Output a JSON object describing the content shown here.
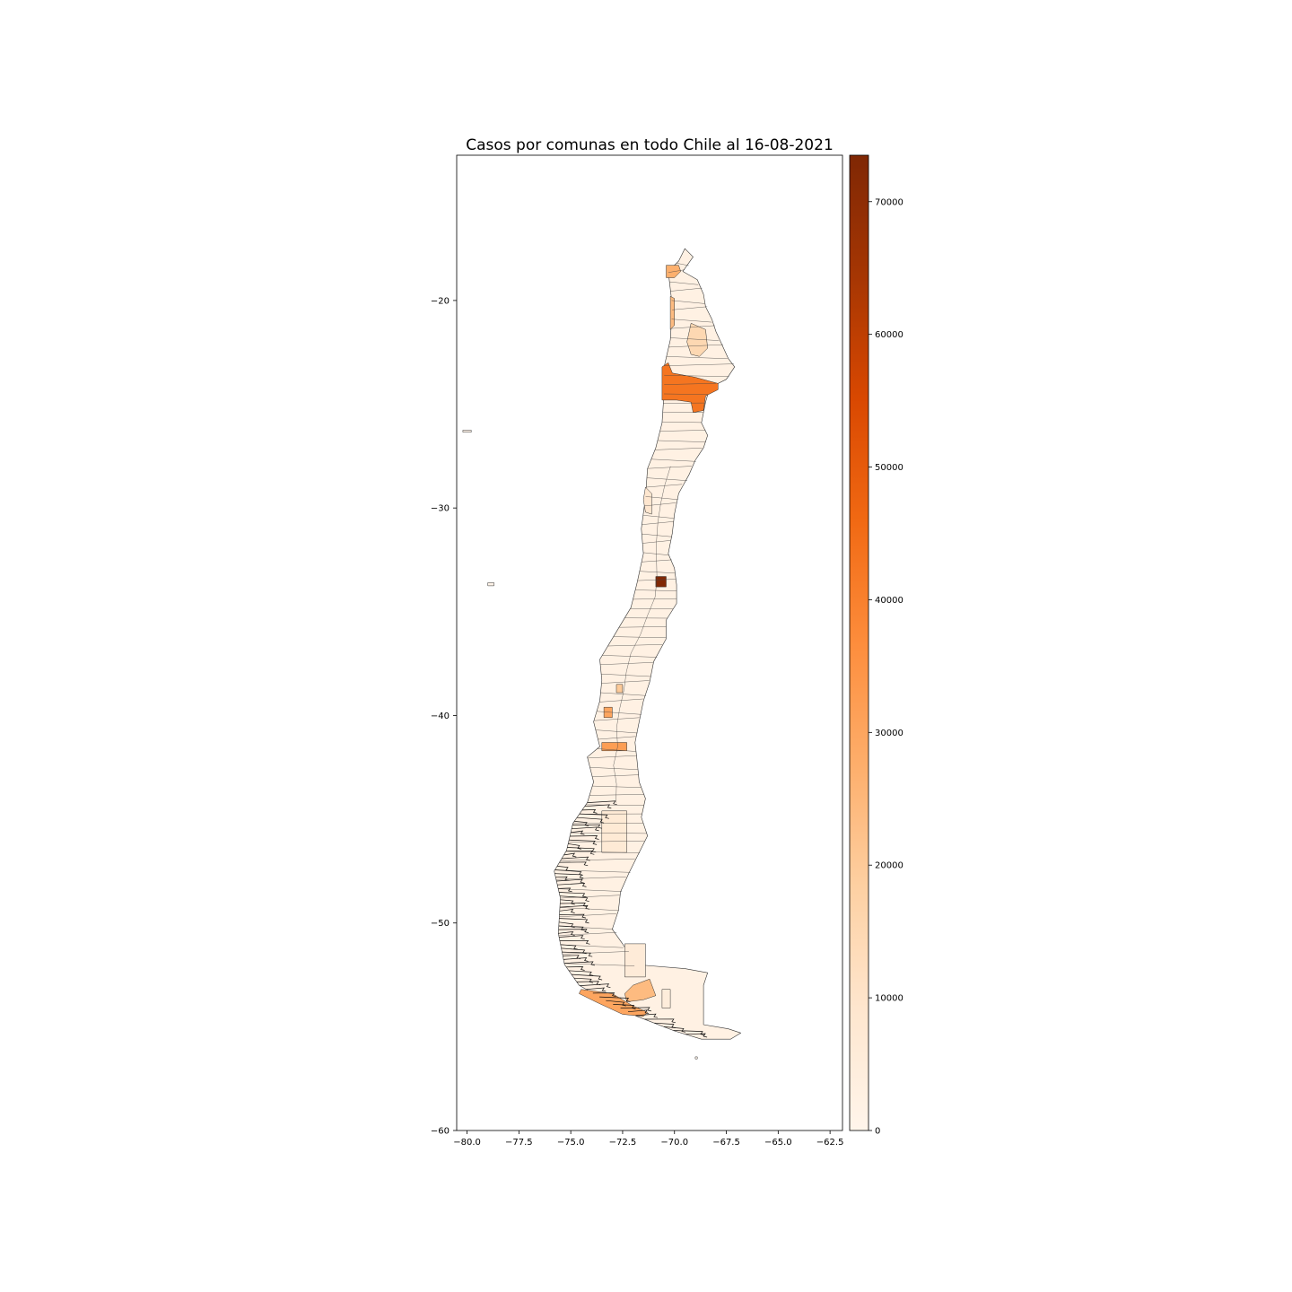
{
  "chart_data": {
    "type": "choropleth",
    "title": "Casos por comunas en todo Chile al 16-08-2021",
    "xlabel": "",
    "ylabel": "",
    "xlim": [
      -80.5,
      -61.9
    ],
    "ylim": [
      -60.0,
      -13.0
    ],
    "x_ticks": [
      -80.0,
      -77.5,
      -75.0,
      -72.5,
      -70.0,
      -67.5,
      -65.0,
      -62.5
    ],
    "x_tick_labels": [
      "−80.0",
      "−77.5",
      "−75.0",
      "−72.5",
      "−70.0",
      "−67.5",
      "−65.0",
      "−62.5"
    ],
    "y_ticks": [
      -20,
      -30,
      -40,
      -50,
      -60
    ],
    "y_tick_labels": [
      "−20",
      "−30",
      "−40",
      "−50",
      "−60"
    ],
    "grid": false,
    "colorbar": {
      "colormap": "Oranges",
      "range": [
        0,
        73500
      ],
      "ticks": [
        0,
        10000,
        20000,
        30000,
        40000,
        50000,
        60000,
        70000
      ],
      "tick_labels": [
        "0",
        "10000",
        "20000",
        "30000",
        "40000",
        "50000",
        "60000",
        "70000"
      ],
      "stops": [
        "#fff5eb",
        "#fee6ce",
        "#fdd0a2",
        "#fdae6b",
        "#fd8d3c",
        "#f16913",
        "#d94801",
        "#a63603",
        "#7f2704"
      ]
    },
    "regions": [
      {
        "outline": [
          [
            -69.5,
            -17.5
          ],
          [
            -69.1,
            -17.9
          ],
          [
            -69.6,
            -18.6
          ],
          [
            -68.9,
            -19.0
          ],
          [
            -68.6,
            -19.7
          ],
          [
            -68.5,
            -20.3
          ],
          [
            -68.2,
            -20.9
          ],
          [
            -68.0,
            -21.5
          ],
          [
            -67.4,
            -22.8
          ],
          [
            -67.1,
            -23.2
          ],
          [
            -67.5,
            -23.8
          ],
          [
            -68.3,
            -24.2
          ],
          [
            -68.5,
            -24.9
          ],
          [
            -68.7,
            -25.9
          ],
          [
            -68.4,
            -26.5
          ],
          [
            -68.6,
            -27.1
          ],
          [
            -69.0,
            -27.7
          ],
          [
            -69.3,
            -28.4
          ],
          [
            -69.8,
            -29.3
          ],
          [
            -70.0,
            -30.3
          ],
          [
            -70.1,
            -31.2
          ],
          [
            -70.3,
            -32.2
          ],
          [
            -70.0,
            -32.9
          ],
          [
            -69.9,
            -33.7
          ],
          [
            -69.9,
            -34.6
          ],
          [
            -70.4,
            -35.4
          ],
          [
            -70.4,
            -36.3
          ],
          [
            -71.0,
            -37.4
          ],
          [
            -71.2,
            -38.4
          ],
          [
            -71.5,
            -39.3
          ],
          [
            -71.7,
            -40.3
          ],
          [
            -71.9,
            -41.3
          ],
          [
            -71.8,
            -42.2
          ],
          [
            -71.7,
            -43.2
          ],
          [
            -71.4,
            -44.0
          ],
          [
            -71.6,
            -44.9
          ],
          [
            -71.3,
            -45.8
          ],
          [
            -71.8,
            -46.8
          ],
          [
            -72.2,
            -47.6
          ],
          [
            -72.6,
            -48.5
          ],
          [
            -72.7,
            -49.4
          ],
          [
            -73.0,
            -50.3
          ],
          [
            -72.5,
            -51.0
          ],
          [
            -71.9,
            -52.0
          ],
          [
            -69.5,
            -52.2
          ],
          [
            -68.4,
            -52.4
          ],
          [
            -68.6,
            -53.0
          ],
          [
            -68.6,
            -54.9
          ],
          [
            -67.4,
            -55.1
          ],
          [
            -66.8,
            -55.3
          ],
          [
            -67.3,
            -55.6
          ],
          [
            -68.7,
            -55.6
          ],
          [
            -70.0,
            -55.2
          ],
          [
            -71.8,
            -54.5
          ],
          [
            -73.2,
            -53.8
          ],
          [
            -74.6,
            -53.0
          ],
          [
            -75.3,
            -52.0
          ],
          [
            -75.6,
            -50.5
          ],
          [
            -75.5,
            -48.8
          ],
          [
            -75.8,
            -47.5
          ],
          [
            -75.2,
            -46.5
          ],
          [
            -74.9,
            -45.2
          ],
          [
            -74.2,
            -44.2
          ],
          [
            -73.9,
            -43.2
          ],
          [
            -74.2,
            -42.0
          ],
          [
            -73.6,
            -41.5
          ],
          [
            -73.9,
            -40.3
          ],
          [
            -73.6,
            -39.3
          ],
          [
            -73.5,
            -38.3
          ],
          [
            -73.6,
            -37.3
          ],
          [
            -72.7,
            -35.8
          ],
          [
            -72.1,
            -34.8
          ],
          [
            -71.8,
            -33.6
          ],
          [
            -71.5,
            -32.2
          ],
          [
            -71.6,
            -31.0
          ],
          [
            -71.4,
            -29.5
          ],
          [
            -71.3,
            -28.1
          ],
          [
            -70.9,
            -27.1
          ],
          [
            -70.6,
            -25.9
          ],
          [
            -70.5,
            -24.4
          ],
          [
            -70.5,
            -23.2
          ],
          [
            -70.2,
            -21.9
          ],
          [
            -70.1,
            -20.3
          ],
          [
            -70.3,
            -18.6
          ],
          [
            -69.8,
            -18.1
          ],
          [
            -69.5,
            -17.5
          ]
        ],
        "value": 2500
      },
      {
        "outline": [
          [
            -70.4,
            -18.3
          ],
          [
            -69.8,
            -18.3
          ],
          [
            -69.7,
            -18.6
          ],
          [
            -70.0,
            -18.9
          ],
          [
            -70.4,
            -18.9
          ]
        ],
        "value": 27000
      },
      {
        "outline": [
          [
            -70.2,
            -19.8
          ],
          [
            -70.0,
            -19.9
          ],
          [
            -70.0,
            -21.2
          ],
          [
            -70.2,
            -21.4
          ],
          [
            -70.2,
            -20.7
          ]
        ],
        "value": 24000
      },
      {
        "outline": [
          [
            -69.2,
            -21.1
          ],
          [
            -68.5,
            -21.4
          ],
          [
            -68.4,
            -22.3
          ],
          [
            -68.8,
            -22.7
          ],
          [
            -69.2,
            -22.6
          ],
          [
            -69.4,
            -22.0
          ]
        ],
        "value": 15000
      },
      {
        "outline": [
          [
            -70.6,
            -23.2
          ],
          [
            -70.3,
            -23.0
          ],
          [
            -70.1,
            -23.5
          ],
          [
            -69.0,
            -23.7
          ],
          [
            -67.9,
            -24.0
          ],
          [
            -67.9,
            -24.3
          ],
          [
            -68.5,
            -24.6
          ],
          [
            -68.6,
            -25.3
          ],
          [
            -69.1,
            -25.4
          ],
          [
            -69.2,
            -24.9
          ],
          [
            -69.9,
            -24.8
          ],
          [
            -70.6,
            -24.8
          ],
          [
            -70.6,
            -24.0
          ]
        ],
        "value": 43000
      },
      {
        "outline": [
          [
            -71.4,
            -29.0
          ],
          [
            -71.1,
            -29.3
          ],
          [
            -71.1,
            -30.3
          ],
          [
            -71.4,
            -30.2
          ],
          [
            -71.5,
            -29.6
          ]
        ],
        "value": 9000
      },
      {
        "outline": [
          [
            -70.9,
            -33.3
          ],
          [
            -70.4,
            -33.3
          ],
          [
            -70.4,
            -33.8
          ],
          [
            -70.9,
            -33.8
          ]
        ],
        "value": 73000
      },
      {
        "outline": [
          [
            -72.8,
            -38.5
          ],
          [
            -72.5,
            -38.5
          ],
          [
            -72.5,
            -38.9
          ],
          [
            -72.8,
            -38.9
          ]
        ],
        "value": 20000
      },
      {
        "outline": [
          [
            -73.4,
            -39.6
          ],
          [
            -73.0,
            -39.6
          ],
          [
            -73.0,
            -40.1
          ],
          [
            -73.4,
            -40.1
          ]
        ],
        "value": 30000
      },
      {
        "outline": [
          [
            -73.5,
            -41.3
          ],
          [
            -72.3,
            -41.3
          ],
          [
            -72.3,
            -41.7
          ],
          [
            -73.5,
            -41.7
          ]
        ],
        "value": 32000
      },
      {
        "outline": [
          [
            -73.5,
            -44.6
          ],
          [
            -72.3,
            -44.6
          ],
          [
            -72.3,
            -46.6
          ],
          [
            -73.5,
            -46.6
          ]
        ],
        "value": 7000
      },
      {
        "outline": [
          [
            -72.0,
            -53.0
          ],
          [
            -71.2,
            -52.7
          ],
          [
            -70.9,
            -53.5
          ],
          [
            -71.5,
            -53.7
          ],
          [
            -72.3,
            -53.8
          ],
          [
            -72.4,
            -53.4
          ]
        ],
        "value": 24000
      },
      {
        "outline": [
          [
            -74.5,
            -53.2
          ],
          [
            -73.0,
            -53.4
          ],
          [
            -72.0,
            -54.0
          ],
          [
            -71.3,
            -54.3
          ],
          [
            -71.5,
            -54.5
          ],
          [
            -72.5,
            -54.4
          ],
          [
            -73.8,
            -53.8
          ],
          [
            -74.6,
            -53.4
          ]
        ],
        "value": 30000
      },
      {
        "outline": [
          [
            -70.6,
            -53.2
          ],
          [
            -70.2,
            -53.2
          ],
          [
            -70.2,
            -54.1
          ],
          [
            -70.6,
            -54.1
          ]
        ],
        "value": 5000
      },
      {
        "outline": [
          [
            -72.4,
            -51.0
          ],
          [
            -71.4,
            -51.0
          ],
          [
            -71.4,
            -52.6
          ],
          [
            -72.4,
            -52.6
          ]
        ],
        "value": 6000
      },
      {
        "outline": [
          [
            -79.0,
            -33.6
          ],
          [
            -78.7,
            -33.6
          ],
          [
            -78.7,
            -33.75
          ],
          [
            -79.0,
            -33.75
          ]
        ],
        "value": 1000
      },
      {
        "outline": [
          [
            -80.2,
            -26.25
          ],
          [
            -79.8,
            -26.25
          ],
          [
            -79.8,
            -26.35
          ],
          [
            -80.2,
            -26.35
          ]
        ],
        "value": 500
      },
      {
        "outline": [
          [
            -69.0,
            -56.45
          ],
          [
            -68.9,
            -56.45
          ],
          [
            -68.9,
            -56.55
          ],
          [
            -69.0,
            -56.55
          ]
        ],
        "value": 500
      }
    ]
  }
}
